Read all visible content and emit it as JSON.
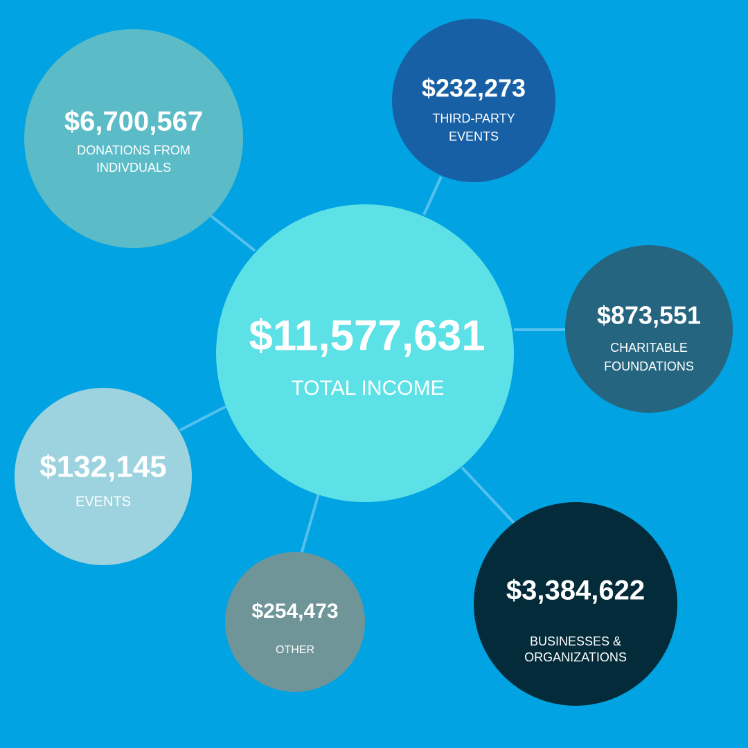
{
  "center": {
    "value": "$11,577,631",
    "label": "TOTAL INCOME"
  },
  "nodes": [
    {
      "value": "$6,700,567",
      "label": [
        "DONATIONS FROM",
        "INDIVDUALS"
      ]
    },
    {
      "value": "$232,273",
      "label": [
        "THIRD-PARTY",
        "EVENTS"
      ]
    },
    {
      "value": "$873,551",
      "label": [
        "CHARITABLE",
        "FOUNDATIONS"
      ]
    },
    {
      "value": "$3,384,622",
      "label": [
        "BUSINESSES &",
        "ORGANIZATIONS"
      ]
    },
    {
      "value": "$254,473",
      "label": [
        "OTHER"
      ]
    },
    {
      "value": "$132,145",
      "label": [
        "EVENTS"
      ]
    }
  ]
}
